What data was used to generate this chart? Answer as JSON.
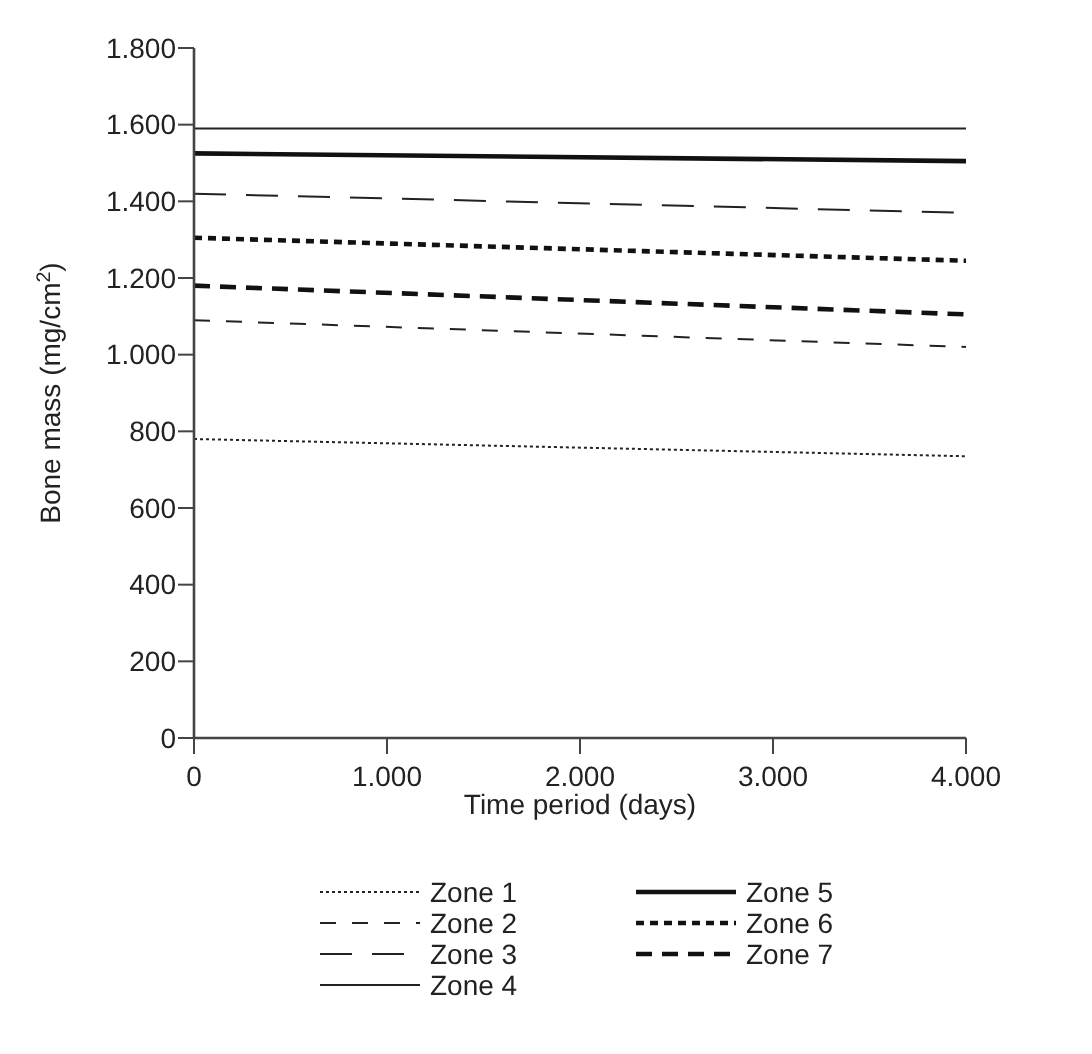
{
  "chart_data": {
    "type": "line",
    "xlabel": "Time period (days)",
    "ylabel": "Bone mass (mg/cm$^{2}$)",
    "x": [
      0,
      4000
    ],
    "xlim": [
      0,
      4000
    ],
    "xticks": [
      0,
      {
        "value": 1000,
        "label": "1.000"
      },
      {
        "value": 2000,
        "label": "2.000"
      },
      {
        "value": 3000,
        "label": "3.000"
      },
      {
        "value": 4000,
        "label": "4.000"
      }
    ],
    "ylim": [
      0,
      1800
    ],
    "yticks": [
      0,
      200,
      400,
      600,
      800,
      {
        "value": 1000,
        "label": "1.000"
      },
      {
        "value": 1200,
        "label": "1.200"
      },
      {
        "value": 1400,
        "label": "1.400"
      },
      {
        "value": 1600,
        "label": "1.600"
      },
      {
        "value": 1800,
        "label": "1.800"
      }
    ],
    "series": [
      {
        "name": "Zone 1",
        "color": "#222222",
        "line_style": "dotted",
        "values": [
          780,
          735
        ]
      },
      {
        "name": "Zone 2",
        "color": "#222222",
        "line_style": "dashed",
        "values": [
          1090,
          1020
        ]
      },
      {
        "name": "Zone 3",
        "color": "#222222",
        "line_style": "dashed",
        "values": [
          1420,
          1370
        ]
      },
      {
        "name": "Zone 4",
        "color": "#222222",
        "line_style": "solid",
        "values": [
          1590,
          1590
        ]
      },
      {
        "name": "Zone 5",
        "color": "#111111",
        "line_style": "solid",
        "values": [
          1525,
          1505
        ]
      },
      {
        "name": "Zone 6",
        "color": "#111111",
        "line_style": "dotted",
        "values": [
          1305,
          1245
        ]
      },
      {
        "name": "Zone 7",
        "color": "#111111",
        "line_style": "dashed",
        "values": [
          1180,
          1105
        ]
      }
    ],
    "grid": false,
    "legend": "bottom"
  }
}
